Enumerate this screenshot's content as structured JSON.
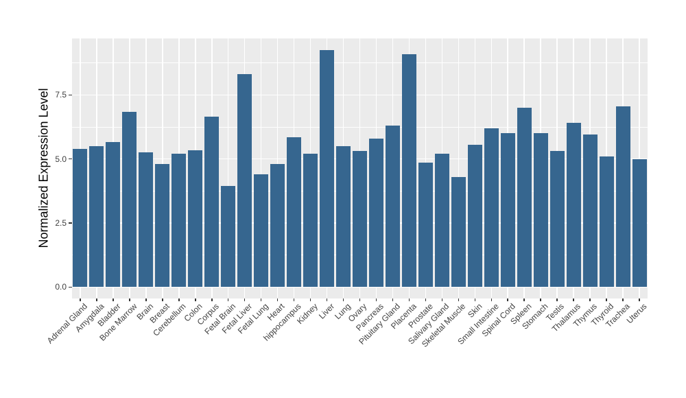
{
  "figure": {
    "background_color": "#FFFFFF",
    "panel_background_color": "#EBEBEB",
    "grid_color": "#FFFFFF",
    "bar_color": "#36668F",
    "tick_mark_color": "#333333",
    "axis_text_color": "#404040",
    "axis_title_color": "#000000"
  },
  "chart_data": {
    "type": "bar",
    "title": "",
    "xlabel": "",
    "ylabel": "Normalized Expression Level",
    "categories": [
      "Adrenal Gland",
      "Amygdala",
      "Bladder",
      "Bone Marrow",
      "Brain",
      "Breast",
      "Cerebellum",
      "Colon",
      "Corpus",
      "Fetal Brain",
      "Fetal Liver",
      "Fetal Lung",
      "Heart",
      "hippocampus",
      "Kidney",
      "Liver",
      "Lung",
      "Ovary",
      "Pancreas",
      "Pituitary Gland",
      "Placenta",
      "Prostate",
      "Salivary Gland",
      "Skeletal Muscle",
      "Skin",
      "Small Intestine",
      "Spinal Cord",
      "Spleen",
      "Stomach",
      "Testis",
      "Thalamus",
      "Thymus",
      "Thyroid",
      "Trachea",
      "Uterus"
    ],
    "values": [
      5.4,
      5.5,
      5.65,
      6.85,
      5.25,
      4.8,
      5.2,
      5.35,
      6.65,
      3.95,
      8.3,
      4.4,
      4.8,
      5.85,
      5.2,
      9.25,
      5.5,
      5.3,
      5.8,
      6.3,
      9.1,
      4.85,
      5.2,
      4.3,
      5.55,
      6.2,
      6.0,
      7.0,
      6.0,
      5.3,
      6.4,
      5.95,
      5.1,
      7.05,
      5.0
    ],
    "ylim": [
      0,
      9.7
    ],
    "y_major_ticks": [
      0.0,
      2.5,
      5.0,
      7.5
    ],
    "y_tick_labels": [
      "0.0",
      "2.5",
      "5.0",
      "7.5"
    ],
    "y_minor_ticks": [
      1.25,
      3.75,
      6.25,
      8.75
    ],
    "grid": true,
    "legend_position": "none",
    "bar_orientation": "vertical",
    "x_label_angle_deg": 45
  }
}
